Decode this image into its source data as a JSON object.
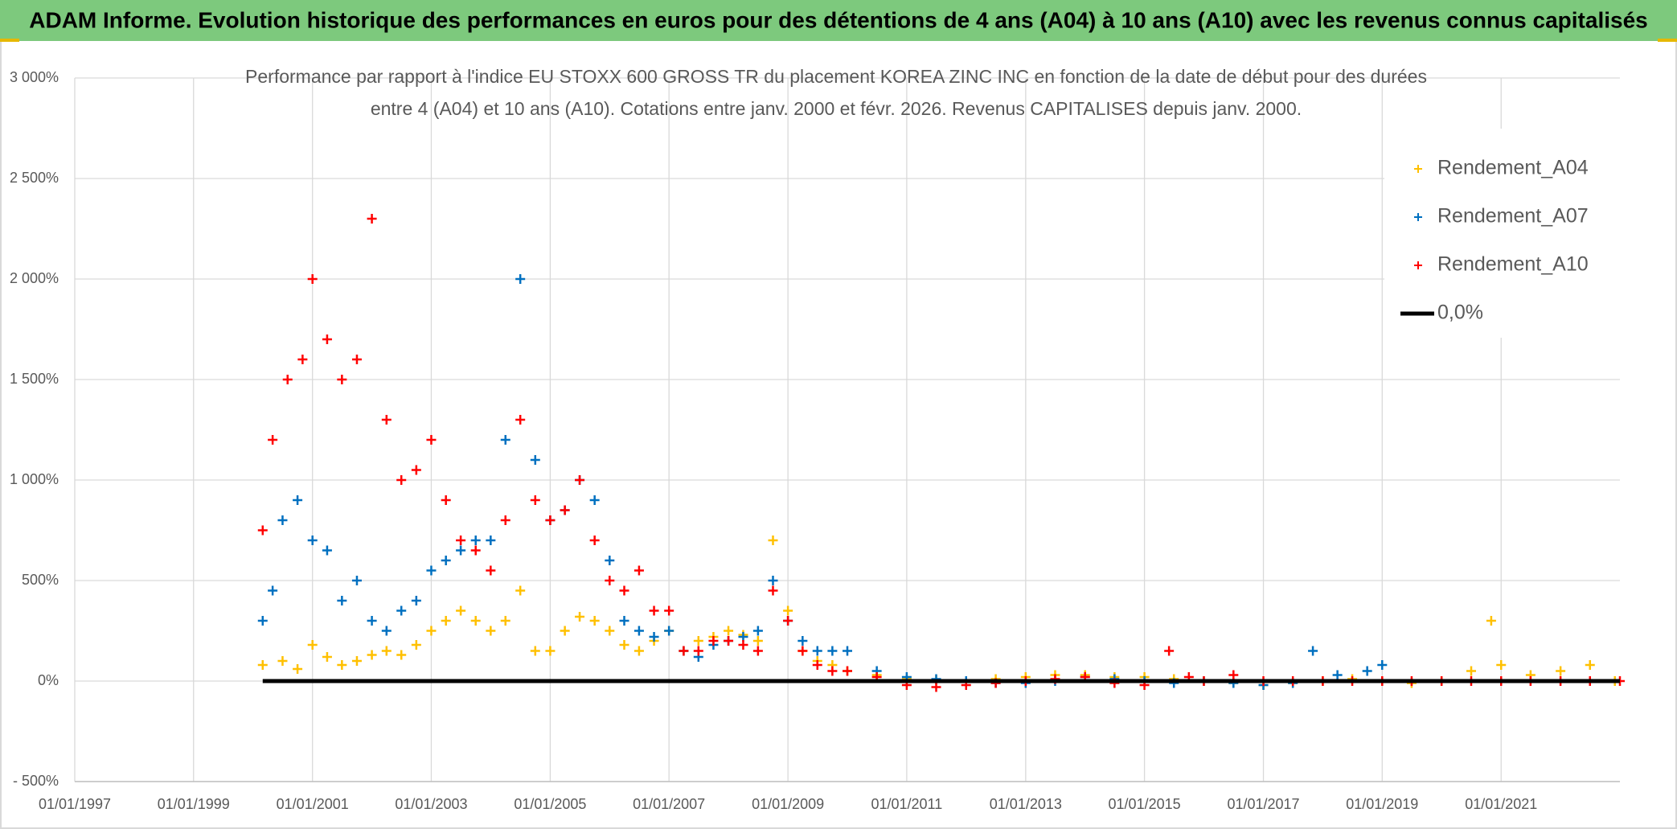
{
  "chart_data": {
    "type": "scatter",
    "title": "ADAM Informe. Evolution historique des performances en euros pour des détentions de 4 ans (A04) à 10 ans (A10) avec les revenus connus capitalisés",
    "subtitle": [
      "Performance par rapport à l'indice EU STOXX 600 GROSS TR  du placement KOREA ZINC INC en fonction de la date de début pour des durées",
      "entre 4 (A04) et 10 ans (A10). Cotations entre janv. 2000 et févr. 2026. Revenus CAPITALISES depuis janv. 2000."
    ],
    "xlim": [
      "1997-01-01",
      "2023-01-01"
    ],
    "xticks": [
      {
        "value": "1997-01-01",
        "label": "01/01/1997"
      },
      {
        "value": "1999-01-01",
        "label": "01/01/1999"
      },
      {
        "value": "2001-01-01",
        "label": "01/01/2001"
      },
      {
        "value": "2003-01-01",
        "label": "01/01/2003"
      },
      {
        "value": "2005-01-01",
        "label": "01/01/2005"
      },
      {
        "value": "2007-01-01",
        "label": "01/01/2007"
      },
      {
        "value": "2009-01-01",
        "label": "01/01/2009"
      },
      {
        "value": "2011-01-01",
        "label": "01/01/2011"
      },
      {
        "value": "2013-01-01",
        "label": "01/01/2013"
      },
      {
        "value": "2015-01-01",
        "label": "01/01/2015"
      },
      {
        "value": "2017-01-01",
        "label": "01/01/2017"
      },
      {
        "value": "2019-01-01",
        "label": "01/01/2019"
      },
      {
        "value": "2021-01-01",
        "label": "01/01/2021"
      }
    ],
    "ylim": [
      -500,
      3000
    ],
    "yticks": [
      {
        "value": -500,
        "label": "- 500%"
      },
      {
        "value": 0,
        "label": "0%"
      },
      {
        "value": 500,
        "label": "500%"
      },
      {
        "value": 1000,
        "label": "1 000%"
      },
      {
        "value": 1500,
        "label": "1 500%"
      },
      {
        "value": 2000,
        "label": "2 000%"
      },
      {
        "value": 2500,
        "label": "2 500%"
      },
      {
        "value": 3000,
        "label": "3 000%"
      }
    ],
    "grid": true,
    "legend": "top-right",
    "series": [
      {
        "name": "Rendement_A04",
        "color": "#ffc000",
        "style": "marker",
        "x": [
          "2000-03-01",
          "2000-07-01",
          "2000-10-01",
          "2001-01-01",
          "2001-04-01",
          "2001-07-01",
          "2001-10-01",
          "2002-01-01",
          "2002-04-01",
          "2002-07-01",
          "2002-10-01",
          "2003-01-01",
          "2003-04-01",
          "2003-07-01",
          "2003-10-01",
          "2004-01-01",
          "2004-04-01",
          "2004-07-01",
          "2004-10-01",
          "2005-01-01",
          "2005-04-01",
          "2005-07-01",
          "2005-10-01",
          "2006-01-01",
          "2006-04-01",
          "2006-07-01",
          "2006-10-01",
          "2007-01-01",
          "2007-04-01",
          "2007-07-01",
          "2007-10-01",
          "2008-01-01",
          "2008-04-01",
          "2008-07-01",
          "2008-10-01",
          "2009-01-01",
          "2009-04-01",
          "2009-07-01",
          "2009-10-01",
          "2010-01-01",
          "2010-07-01",
          "2011-01-01",
          "2011-07-01",
          "2012-01-01",
          "2012-07-01",
          "2013-01-01",
          "2013-07-01",
          "2014-01-01",
          "2014-07-01",
          "2015-01-01",
          "2015-07-01",
          "2016-01-01",
          "2016-07-01",
          "2017-01-01",
          "2017-07-01",
          "2018-01-01",
          "2018-07-01",
          "2019-01-01",
          "2019-07-01",
          "2020-01-01",
          "2020-07-01",
          "2020-11-01",
          "2021-01-01",
          "2021-07-01",
          "2022-01-01",
          "2022-07-01",
          "2022-12-01"
        ],
        "values": [
          80,
          100,
          60,
          180,
          120,
          80,
          100,
          130,
          150,
          130,
          180,
          250,
          300,
          350,
          300,
          250,
          300,
          450,
          150,
          150,
          250,
          320,
          300,
          250,
          180,
          150,
          200,
          250,
          150,
          200,
          220,
          250,
          230,
          200,
          700,
          350,
          150,
          100,
          80,
          50,
          30,
          10,
          5,
          0,
          10,
          20,
          30,
          30,
          20,
          20,
          10,
          0,
          -10,
          -20,
          -10,
          0,
          10,
          0,
          -10,
          0,
          50,
          300,
          80,
          30,
          50,
          80,
          0
        ]
      },
      {
        "name": "Rendement_A07",
        "color": "#0070c0",
        "style": "marker",
        "x": [
          "2000-03-01",
          "2000-05-01",
          "2000-07-01",
          "2000-10-01",
          "2001-01-01",
          "2001-04-01",
          "2001-07-01",
          "2001-10-01",
          "2002-01-01",
          "2002-04-01",
          "2002-07-01",
          "2002-10-01",
          "2003-01-01",
          "2003-04-01",
          "2003-07-01",
          "2003-10-01",
          "2004-01-01",
          "2004-04-01",
          "2004-07-01",
          "2004-10-01",
          "2005-01-01",
          "2005-04-01",
          "2005-07-01",
          "2005-10-01",
          "2006-01-01",
          "2006-04-01",
          "2006-07-01",
          "2006-10-01",
          "2007-01-01",
          "2007-04-01",
          "2007-07-01",
          "2007-10-01",
          "2008-01-01",
          "2008-04-01",
          "2008-07-01",
          "2008-10-01",
          "2009-01-01",
          "2009-04-01",
          "2009-07-01",
          "2009-10-01",
          "2010-01-01",
          "2010-07-01",
          "2011-01-01",
          "2011-07-01",
          "2012-01-01",
          "2012-07-01",
          "2013-01-01",
          "2013-07-01",
          "2014-01-01",
          "2014-07-01",
          "2015-01-01",
          "2015-07-01",
          "2016-01-01",
          "2016-07-01",
          "2017-01-01",
          "2017-07-01",
          "2017-11-01",
          "2018-04-01",
          "2018-10-01",
          "2019-01-01"
        ],
        "values": [
          300,
          450,
          800,
          900,
          700,
          650,
          400,
          500,
          300,
          250,
          350,
          400,
          550,
          600,
          650,
          700,
          700,
          1200,
          2000,
          1100,
          800,
          850,
          1000,
          900,
          600,
          300,
          250,
          220,
          250,
          150,
          120,
          180,
          200,
          220,
          250,
          500,
          300,
          200,
          150,
          150,
          150,
          50,
          20,
          10,
          0,
          -10,
          -10,
          0,
          20,
          10,
          0,
          -10,
          0,
          -10,
          -20,
          -10,
          150,
          30,
          50,
          80
        ]
      },
      {
        "name": "Rendement_A10",
        "color": "#ff0000",
        "style": "marker",
        "x": [
          "2000-03-01",
          "2000-05-01",
          "2000-08-01",
          "2000-11-01",
          "2001-01-01",
          "2001-04-01",
          "2001-07-01",
          "2001-10-01",
          "2002-01-01",
          "2002-04-01",
          "2002-07-01",
          "2002-10-01",
          "2003-01-01",
          "2003-04-01",
          "2003-07-01",
          "2003-10-01",
          "2004-01-01",
          "2004-04-01",
          "2004-07-01",
          "2004-10-01",
          "2005-01-01",
          "2005-04-01",
          "2005-07-01",
          "2005-10-01",
          "2006-01-01",
          "2006-04-01",
          "2006-07-01",
          "2006-10-01",
          "2007-01-01",
          "2007-04-01",
          "2007-07-01",
          "2007-10-01",
          "2008-01-01",
          "2008-04-01",
          "2008-07-01",
          "2008-10-01",
          "2009-01-01",
          "2009-04-01",
          "2009-07-01",
          "2009-10-01",
          "2010-01-01",
          "2010-07-01",
          "2011-01-01",
          "2011-07-01",
          "2012-01-01",
          "2012-07-01",
          "2013-01-01",
          "2013-07-01",
          "2014-01-01",
          "2014-07-01",
          "2015-01-01",
          "2015-06-01",
          "2015-10-01",
          "2016-01-01",
          "2016-07-01",
          "2017-01-01",
          "2017-07-01",
          "2018-01-01",
          "2018-07-01",
          "2019-01-01",
          "2019-07-01",
          "2020-01-01",
          "2020-07-01",
          "2021-01-01",
          "2021-07-01",
          "2022-01-01",
          "2022-07-01",
          "2023-01-01"
        ],
        "values": [
          750,
          1200,
          1500,
          1600,
          2000,
          1700,
          1500,
          1600,
          2300,
          1300,
          1000,
          1050,
          1200,
          900,
          700,
          650,
          550,
          800,
          1300,
          900,
          800,
          850,
          1000,
          700,
          500,
          450,
          550,
          350,
          350,
          150,
          150,
          200,
          200,
          180,
          150,
          450,
          300,
          150,
          80,
          50,
          50,
          20,
          -20,
          -30,
          -20,
          -10,
          0,
          10,
          20,
          -10,
          -20,
          150,
          20,
          0,
          30,
          0,
          0,
          0,
          0,
          0,
          0,
          0,
          0,
          0,
          0,
          0,
          0,
          0
        ]
      },
      {
        "name": "0,0%",
        "color": "#000000",
        "style": "line",
        "x": [
          "2000-03-01",
          "2023-01-01"
        ],
        "values": [
          0,
          0
        ]
      }
    ]
  }
}
